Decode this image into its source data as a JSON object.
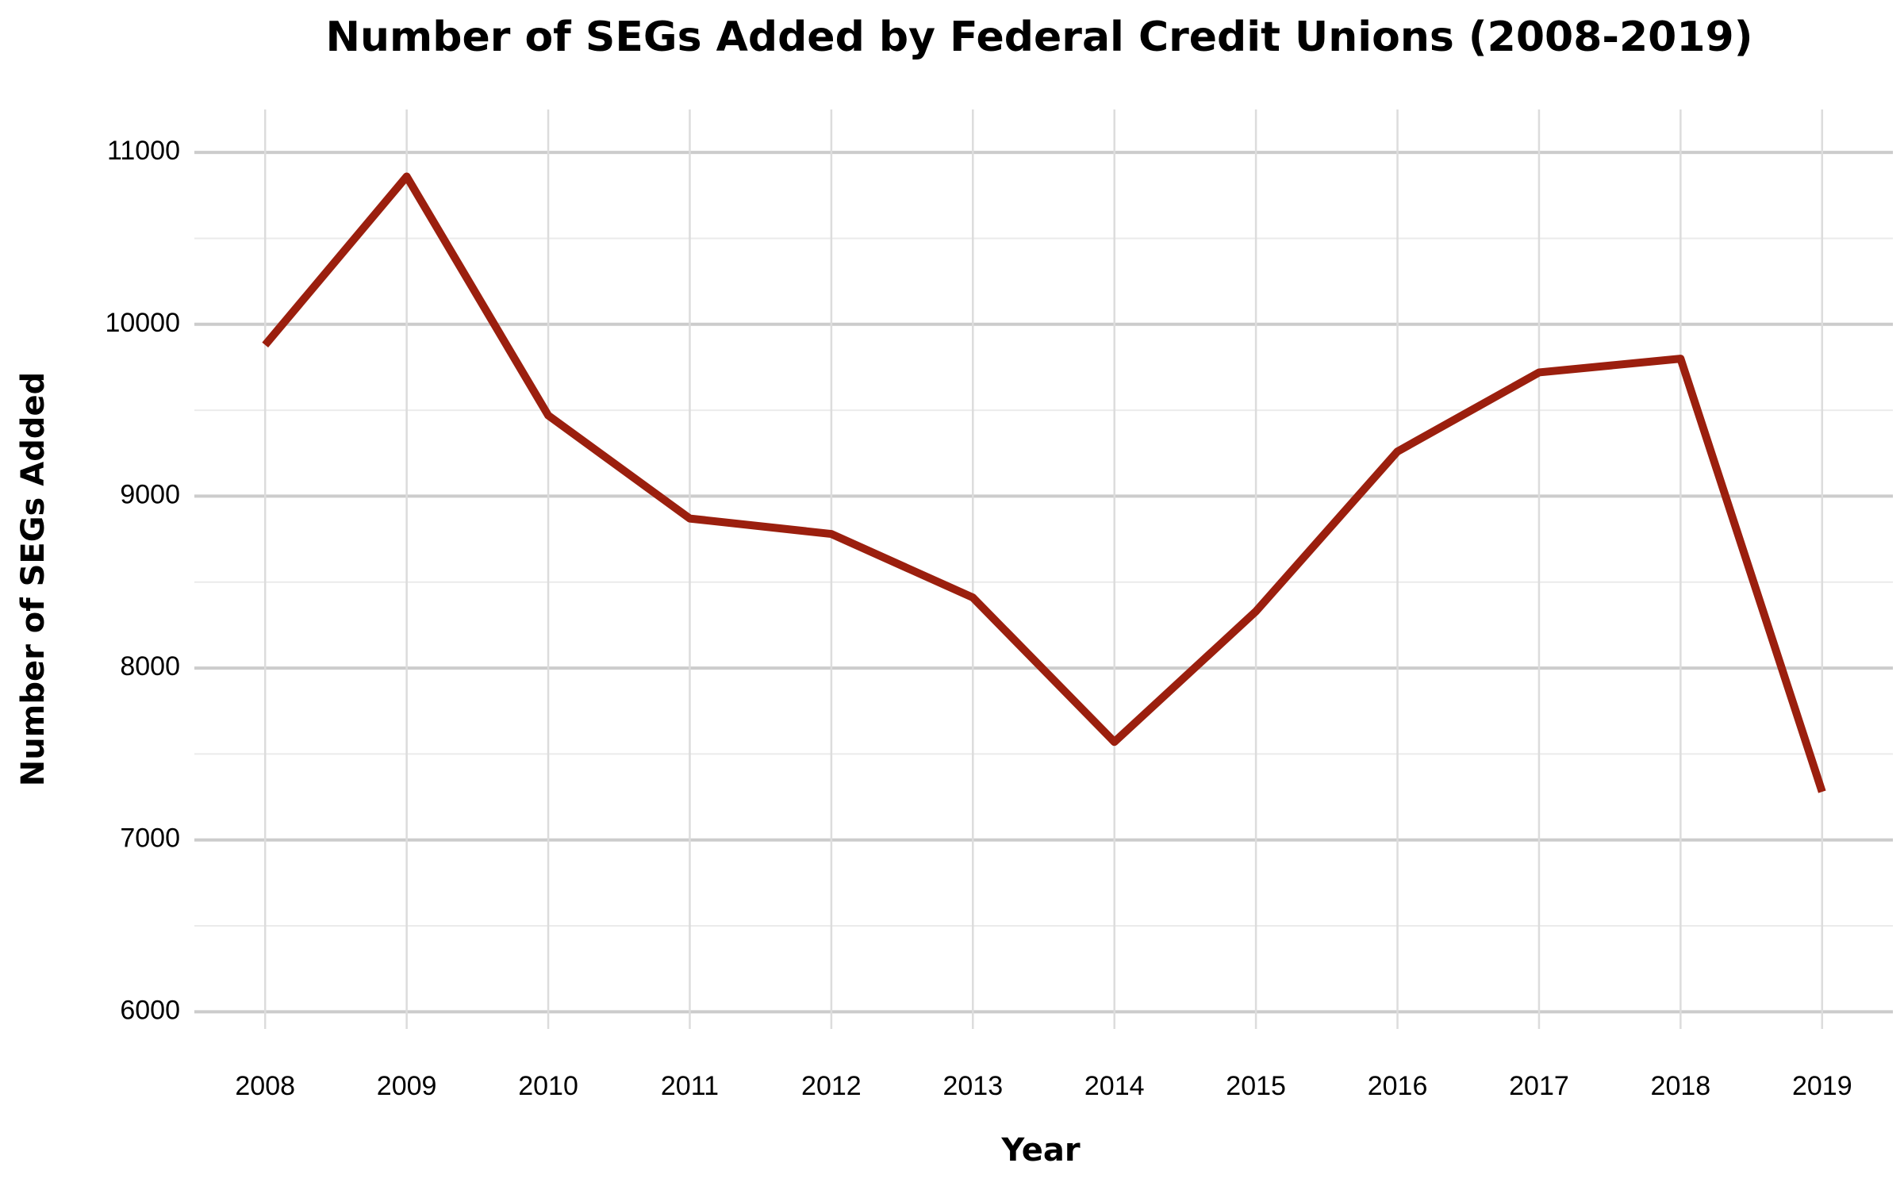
{
  "chart_data": {
    "type": "line",
    "title": "Number of SEGs Added by Federal Credit Unions (2008-2019)",
    "x_label": "Year",
    "y_label": "Number of SEGs Added",
    "categories": [
      "2008",
      "2009",
      "2010",
      "2011",
      "2012",
      "2013",
      "2014",
      "2015",
      "2016",
      "2017",
      "2018",
      "2019"
    ],
    "series": [
      {
        "name": "SEGs Added",
        "color": "#9b1f0e",
        "values": [
          9880,
          10860,
          9470,
          8870,
          8780,
          8410,
          7570,
          8330,
          9260,
          9720,
          9800,
          7280
        ]
      }
    ],
    "ylim": [
      5900,
      11250
    ],
    "yticks": [
      6000,
      7000,
      8000,
      9000,
      10000,
      11000
    ],
    "grid": true
  }
}
